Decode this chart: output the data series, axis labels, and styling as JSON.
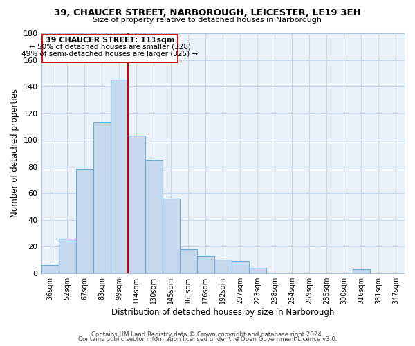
{
  "title_line1": "39, CHAUCER STREET, NARBOROUGH, LEICESTER, LE19 3EH",
  "title_line2": "Size of property relative to detached houses in Narborough",
  "xlabel": "Distribution of detached houses by size in Narborough",
  "ylabel": "Number of detached properties",
  "bar_labels": [
    "36sqm",
    "52sqm",
    "67sqm",
    "83sqm",
    "99sqm",
    "114sqm",
    "130sqm",
    "145sqm",
    "161sqm",
    "176sqm",
    "192sqm",
    "207sqm",
    "223sqm",
    "238sqm",
    "254sqm",
    "269sqm",
    "285sqm",
    "300sqm",
    "316sqm",
    "331sqm",
    "347sqm"
  ],
  "bar_values": [
    6,
    26,
    78,
    113,
    145,
    103,
    85,
    56,
    18,
    13,
    10,
    9,
    4,
    0,
    0,
    0,
    0,
    0,
    3,
    0,
    0
  ],
  "bar_color": "#c5d8ee",
  "bar_edge_color": "#6aaad4",
  "vline_x": 5.0,
  "vline_color": "#cc0000",
  "ylim": [
    0,
    180
  ],
  "yticks": [
    0,
    20,
    40,
    60,
    80,
    100,
    120,
    140,
    160,
    180
  ],
  "annotation_title": "39 CHAUCER STREET: 111sqm",
  "annotation_line1": "← 50% of detached houses are smaller (328)",
  "annotation_line2": "49% of semi-detached houses are larger (325) →",
  "footer_line1": "Contains HM Land Registry data © Crown copyright and database right 2024.",
  "footer_line2": "Contains public sector information licensed under the Open Government Licence v3.0.",
  "background_color": "#ffffff",
  "grid_color": "#c8d8ea"
}
